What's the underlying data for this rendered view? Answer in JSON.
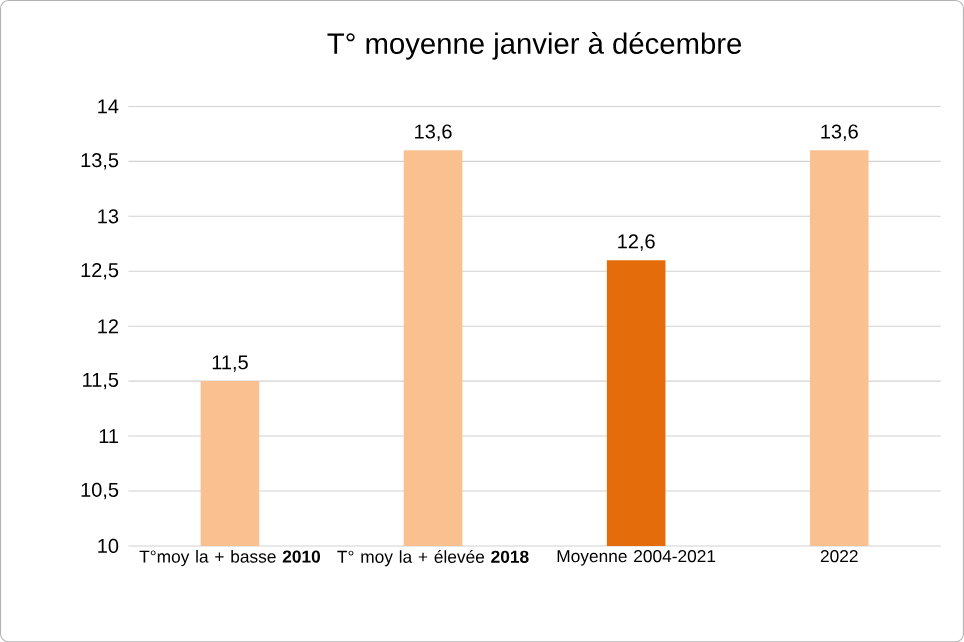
{
  "chart_data": {
    "type": "bar",
    "title": "T° moyenne janvier à décembre",
    "categories": [
      "T°moy la + basse **2010**",
      "T° moy la + élevée **2018**",
      "Moyenne 2004-2021",
      "2022"
    ],
    "values": [
      11.5,
      13.6,
      12.6,
      13.6
    ],
    "colors": [
      "#fac090",
      "#fac090",
      "#e46c0a",
      "#fac090"
    ],
    "value_labels": [
      "11,5",
      "13,6",
      "12,6",
      "13,6"
    ],
    "ylim": [
      10,
      14
    ],
    "yticks": [
      10,
      {
        "value": 10.5,
        "label": "10,5"
      },
      11,
      {
        "value": 11.5,
        "label": "11,5"
      },
      12,
      {
        "value": 12.5,
        "label": "12,5"
      },
      13,
      {
        "value": 13.5,
        "label": "13,5"
      },
      14
    ],
    "grid": "y"
  }
}
